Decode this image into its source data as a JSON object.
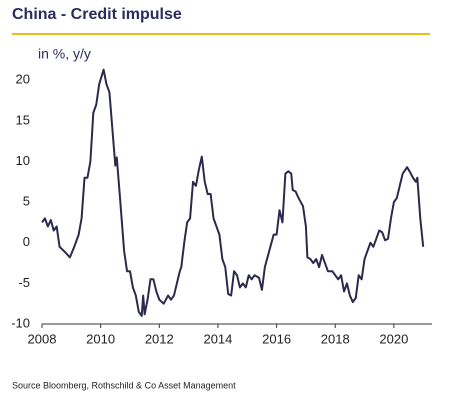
{
  "chart_data": {
    "type": "line",
    "title": "China - Credit impulse",
    "subtitle": "in %, y/y",
    "source": "Source Bloomberg, Rothschild & Co Asset Management",
    "color": "#2b2a4c",
    "xlim": [
      2008,
      2021.3
    ],
    "ylim": [
      -10,
      22
    ],
    "xticks": [
      2008,
      2010,
      2012,
      2014,
      2016,
      2018,
      2020
    ],
    "yticks": [
      -10,
      -5,
      0,
      5,
      10,
      15,
      20
    ],
    "x": [
      2008.0,
      2008.1,
      2008.2,
      2008.3,
      2008.4,
      2008.5,
      2008.6,
      2008.8,
      2008.95,
      2009.1,
      2009.25,
      2009.35,
      2009.45,
      2009.55,
      2009.65,
      2009.75,
      2009.85,
      2009.95,
      2010.1,
      2010.2,
      2010.3,
      2010.4,
      2010.5,
      2010.55,
      2010.65,
      2010.8,
      2010.9,
      2011.0,
      2011.1,
      2011.2,
      2011.3,
      2011.4,
      2011.45,
      2011.5,
      2011.6,
      2011.7,
      2011.8,
      2011.9,
      2012.0,
      2012.15,
      2012.3,
      2012.4,
      2012.5,
      2012.6,
      2012.7,
      2012.75,
      2012.85,
      2012.95,
      2013.05,
      2013.15,
      2013.25,
      2013.35,
      2013.45,
      2013.55,
      2013.65,
      2013.75,
      2013.85,
      2013.95,
      2014.05,
      2014.15,
      2014.25,
      2014.35,
      2014.45,
      2014.55,
      2014.65,
      2014.75,
      2014.85,
      2014.95,
      2015.05,
      2015.15,
      2015.25,
      2015.4,
      2015.5,
      2015.6,
      2015.75,
      2015.9,
      2016.0,
      2016.1,
      2016.2,
      2016.3,
      2016.4,
      2016.5,
      2016.55,
      2016.65,
      2016.75,
      2016.9,
      2017.0,
      2017.05,
      2017.15,
      2017.25,
      2017.35,
      2017.45,
      2017.55,
      2017.65,
      2017.75,
      2017.9,
      2018.0,
      2018.1,
      2018.2,
      2018.3,
      2018.4,
      2018.5,
      2018.6,
      2018.7,
      2018.8,
      2018.9,
      2019.0,
      2019.1,
      2019.2,
      2019.3,
      2019.4,
      2019.5,
      2019.6,
      2019.7,
      2019.8,
      2019.9,
      2020.0,
      2020.1,
      2020.2,
      2020.3,
      2020.45,
      2020.55,
      2020.65,
      2020.75,
      2020.8,
      2020.9,
      2021.0
    ],
    "values": [
      2.5,
      3,
      2,
      2.8,
      1.5,
      2,
      -0.5,
      -1.2,
      -1.8,
      -0.5,
      1,
      3,
      8,
      8,
      10,
      16,
      17,
      19.5,
      21.3,
      19.5,
      18.5,
      14,
      9.5,
      10.5,
      6,
      -1,
      -3.5,
      -3.5,
      -5.5,
      -6.5,
      -8.5,
      -9,
      -6.5,
      -8.8,
      -7,
      -4.5,
      -4.5,
      -6,
      -7,
      -7.5,
      -6.5,
      -7,
      -6.5,
      -5,
      -3.5,
      -3,
      0,
      2.5,
      3,
      7.5,
      7,
      9,
      10.6,
      7.5,
      6,
      6,
      3,
      2,
      1,
      -2,
      -3,
      -6.3,
      -6.5,
      -3.5,
      -4,
      -5.5,
      -5,
      -5.5,
      -4,
      -4.5,
      -4,
      -4.3,
      -5.8,
      -3,
      -1,
      1,
      1,
      4,
      2.5,
      8.5,
      8.8,
      8.5,
      6.5,
      6.3,
      5.5,
      4.5,
      2,
      -1.8,
      -2,
      -2.5,
      -2,
      -3,
      -1.5,
      -2.5,
      -3.5,
      -3.5,
      -4,
      -4.5,
      -4,
      -6,
      -5,
      -6.5,
      -7.3,
      -6.8,
      -4,
      -4.5,
      -2,
      -1,
      0,
      -0.5,
      0.5,
      1.5,
      1.3,
      0.3,
      0.5,
      3,
      5,
      5.5,
      7,
      8.5,
      9.3,
      8.7,
      8,
      7.5,
      8,
      3,
      -0.5
    ]
  }
}
